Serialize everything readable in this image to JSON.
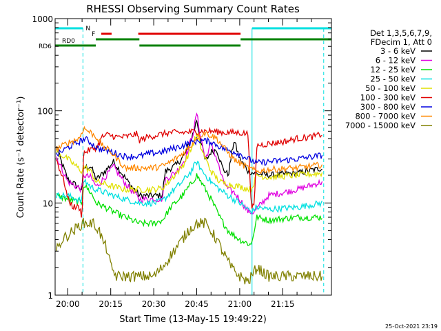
{
  "chart_data": {
    "type": "line",
    "title": "RHESSI Observing Summary Count Rates",
    "xlabel": "Start Time (13-May-15 19:49:22)",
    "ylabel": "Count Rate (s⁻¹ detector⁻¹)",
    "yscale": "log",
    "ylim": [
      1,
      1000
    ],
    "xlim_minutes": [
      -4.4,
      92.0
    ],
    "y_ticks": [
      "1",
      "10",
      "100",
      "1000"
    ],
    "x_ticks": [
      {
        "label": "20:00",
        "minute": 0
      },
      {
        "label": "20:15",
        "minute": 15
      },
      {
        "label": "20:30",
        "minute": 30
      },
      {
        "label": "20:45",
        "minute": 45
      },
      {
        "label": "21:00",
        "minute": 60
      },
      {
        "label": "21:15",
        "minute": 75
      }
    ],
    "timestamp": "25-Oct-2021 23:19",
    "legend": {
      "header": [
        "Det 1,3,5,6,7,9,",
        "FDecim 1, Att 0"
      ],
      "entries": [
        {
          "label": "3 - 6 keV",
          "color": "#000000"
        },
        {
          "label": "6 - 12 keV",
          "color": "#e000e0"
        },
        {
          "label": "12 - 25 keV",
          "color": "#00e000"
        },
        {
          "label": "25 - 50 keV",
          "color": "#00e0e0"
        },
        {
          "label": "50 - 100 keV",
          "color": "#e0e000"
        },
        {
          "label": "100 - 300 keV",
          "color": "#e00000"
        },
        {
          "label": "300 - 800 keV",
          "color": "#0000e0"
        },
        {
          "label": "800 - 7000 keV",
          "color": "#ff8800"
        },
        {
          "label": "7000 - 15000 keV",
          "color": "#808000"
        }
      ]
    },
    "flags": {
      "N_label": "N",
      "F_label": "F",
      "RD6_label": "RD6",
      "night": [
        [
          -4.4,
          5.3
        ],
        [
          64.3,
          92.0
        ]
      ],
      "night_dashed": [
        5.3,
        89.3
      ],
      "flare": [
        [
          11.7,
          15.3
        ],
        [
          24.6,
          60.3
        ]
      ],
      "rd6": [
        [
          -4.4,
          9.8
        ],
        [
          9.8,
          25.0
        ],
        [
          25.0,
          60.3
        ],
        [
          60.3,
          92.0
        ]
      ],
      "rd6_colors": [
        "#008000",
        "#008000",
        "#008000",
        "#008000"
      ]
    },
    "series": [
      {
        "name": "3 - 6 keV",
        "color": "#000000",
        "points": [
          [
            -4,
            40
          ],
          [
            0,
            18
          ],
          [
            5,
            14
          ],
          [
            5.5,
            24
          ],
          [
            8,
            25
          ],
          [
            10,
            18
          ],
          [
            13,
            22
          ],
          [
            16,
            28
          ],
          [
            18,
            23
          ],
          [
            21,
            17
          ],
          [
            25,
            12
          ],
          [
            30,
            12
          ],
          [
            33,
            12
          ],
          [
            34,
            22
          ],
          [
            38,
            26
          ],
          [
            41,
            34
          ],
          [
            44,
            60
          ],
          [
            45,
            80
          ],
          [
            46,
            55
          ],
          [
            48,
            28
          ],
          [
            50,
            36
          ],
          [
            52,
            38
          ],
          [
            54,
            24
          ],
          [
            56,
            20
          ],
          [
            58,
            48
          ],
          [
            60,
            30
          ],
          [
            63,
            22
          ],
          [
            65,
            21
          ],
          [
            70,
            20
          ],
          [
            80,
            21
          ],
          [
            89,
            24
          ]
        ]
      },
      {
        "name": "6 - 12 keV",
        "color": "#e000e0",
        "points": [
          [
            -4,
            32
          ],
          [
            0,
            17
          ],
          [
            5,
            14
          ],
          [
            5.5,
            20
          ],
          [
            8,
            19
          ],
          [
            10,
            15
          ],
          [
            13,
            19
          ],
          [
            16,
            25
          ],
          [
            18,
            20
          ],
          [
            21,
            15
          ],
          [
            25,
            11
          ],
          [
            30,
            11
          ],
          [
            33,
            11
          ],
          [
            34,
            18
          ],
          [
            38,
            22
          ],
          [
            41,
            30
          ],
          [
            44,
            62
          ],
          [
            45,
            95
          ],
          [
            46,
            60
          ],
          [
            48,
            30
          ],
          [
            50,
            44
          ],
          [
            52,
            30
          ],
          [
            54,
            18
          ],
          [
            56,
            14
          ],
          [
            58,
            13
          ],
          [
            60,
            11
          ],
          [
            63,
            8
          ],
          [
            65,
            8
          ],
          [
            70,
            12
          ],
          [
            80,
            14
          ],
          [
            89,
            17
          ]
        ]
      },
      {
        "name": "12 - 25 keV",
        "color": "#00e000",
        "points": [
          [
            -4,
            12
          ],
          [
            0,
            11
          ],
          [
            5,
            10
          ],
          [
            5.5,
            16
          ],
          [
            8,
            13
          ],
          [
            10,
            10
          ],
          [
            13,
            9
          ],
          [
            16,
            8
          ],
          [
            20,
            7
          ],
          [
            25,
            6
          ],
          [
            30,
            6
          ],
          [
            33,
            6.5
          ],
          [
            36,
            9
          ],
          [
            40,
            12
          ],
          [
            43,
            16
          ],
          [
            45,
            20
          ],
          [
            47,
            16
          ],
          [
            50,
            11
          ],
          [
            53,
            7
          ],
          [
            56,
            5
          ],
          [
            60,
            4
          ],
          [
            64,
            3.5
          ],
          [
            66,
            7
          ],
          [
            70,
            6.5
          ],
          [
            80,
            7
          ],
          [
            89,
            7
          ]
        ]
      },
      {
        "name": "25 - 50 keV",
        "color": "#00e0e0",
        "points": [
          [
            -4,
            12
          ],
          [
            0,
            12
          ],
          [
            5,
            10.5
          ],
          [
            5.5,
            18
          ],
          [
            8,
            15
          ],
          [
            10,
            14
          ],
          [
            13,
            13
          ],
          [
            16,
            12
          ],
          [
            20,
            11
          ],
          [
            25,
            10
          ],
          [
            30,
            10
          ],
          [
            33,
            10.5
          ],
          [
            36,
            13
          ],
          [
            40,
            17
          ],
          [
            43,
            22
          ],
          [
            45,
            28
          ],
          [
            47,
            22
          ],
          [
            50,
            17
          ],
          [
            53,
            14
          ],
          [
            56,
            12
          ],
          [
            60,
            10
          ],
          [
            64,
            8
          ],
          [
            66,
            9
          ],
          [
            70,
            8.5
          ],
          [
            80,
            9
          ],
          [
            89,
            10
          ]
        ]
      },
      {
        "name": "50 - 100 keV",
        "color": "#e0e000",
        "points": [
          [
            -4,
            36
          ],
          [
            0,
            30
          ],
          [
            5,
            22
          ],
          [
            5.5,
            25
          ],
          [
            8,
            22
          ],
          [
            10,
            17
          ],
          [
            13,
            16
          ],
          [
            16,
            15
          ],
          [
            20,
            14
          ],
          [
            25,
            14
          ],
          [
            30,
            14
          ],
          [
            33,
            14.5
          ],
          [
            36,
            18
          ],
          [
            40,
            25
          ],
          [
            43,
            38
          ],
          [
            45,
            55
          ],
          [
            47,
            36
          ],
          [
            50,
            22
          ],
          [
            53,
            17
          ],
          [
            56,
            16
          ],
          [
            60,
            15
          ],
          [
            64,
            14
          ],
          [
            66,
            20
          ],
          [
            70,
            19
          ],
          [
            80,
            20
          ],
          [
            89,
            21
          ]
        ]
      },
      {
        "name": "100 - 300 keV",
        "color": "#e00000",
        "points": [
          [
            -4,
            30
          ],
          [
            -1,
            16
          ],
          [
            0,
            11
          ],
          [
            2,
            9
          ],
          [
            4,
            9
          ],
          [
            5,
            7
          ],
          [
            5.5,
            35
          ],
          [
            8,
            38
          ],
          [
            10,
            40
          ],
          [
            11,
            45
          ],
          [
            12,
            52
          ],
          [
            14,
            55
          ],
          [
            17,
            52
          ],
          [
            20,
            52
          ],
          [
            24,
            56
          ],
          [
            25,
            48
          ],
          [
            28,
            52
          ],
          [
            33,
            56
          ],
          [
            36,
            58
          ],
          [
            40,
            58
          ],
          [
            45,
            60
          ],
          [
            50,
            60
          ],
          [
            55,
            58
          ],
          [
            58,
            58
          ],
          [
            60,
            58
          ],
          [
            63,
            56
          ],
          [
            64,
            9
          ],
          [
            65,
            9
          ],
          [
            66,
            42
          ],
          [
            70,
            44
          ],
          [
            75,
            46
          ],
          [
            80,
            50
          ],
          [
            85,
            52
          ],
          [
            89,
            56
          ]
        ]
      },
      {
        "name": "300 - 800 keV",
        "color": "#0000e0",
        "points": [
          [
            -4,
            33
          ],
          [
            0,
            40
          ],
          [
            4,
            46
          ],
          [
            6,
            50
          ],
          [
            8,
            45
          ],
          [
            10,
            40
          ],
          [
            12,
            38
          ],
          [
            15,
            36
          ],
          [
            20,
            32
          ],
          [
            25,
            32
          ],
          [
            28,
            34
          ],
          [
            33,
            36
          ],
          [
            38,
            40
          ],
          [
            43,
            45
          ],
          [
            46,
            48
          ],
          [
            50,
            46
          ],
          [
            55,
            38
          ],
          [
            58,
            36
          ],
          [
            60,
            34
          ],
          [
            63,
            30
          ],
          [
            66,
            27
          ],
          [
            70,
            28
          ],
          [
            80,
            30
          ],
          [
            89,
            33
          ]
        ]
      },
      {
        "name": "800 - 7000 keV",
        "color": "#ff8800",
        "points": [
          [
            -4,
            38
          ],
          [
            0,
            45
          ],
          [
            4,
            50
          ],
          [
            5.5,
            65
          ],
          [
            8,
            58
          ],
          [
            10,
            52
          ],
          [
            12,
            42
          ],
          [
            15,
            36
          ],
          [
            20,
            24
          ],
          [
            25,
            24
          ],
          [
            30,
            24
          ],
          [
            33,
            25
          ],
          [
            36,
            28
          ],
          [
            40,
            34
          ],
          [
            43,
            42
          ],
          [
            45,
            52
          ],
          [
            48,
            58
          ],
          [
            52,
            50
          ],
          [
            55,
            38
          ],
          [
            58,
            30
          ],
          [
            60,
            27
          ],
          [
            63,
            24
          ],
          [
            66,
            22
          ],
          [
            70,
            23
          ],
          [
            80,
            24
          ],
          [
            89,
            26
          ]
        ]
      },
      {
        "name": "7000 - 15000 keV",
        "color": "#808000",
        "points": [
          [
            -4,
            3
          ],
          [
            -2,
            4
          ],
          [
            2,
            5
          ],
          [
            5,
            6
          ],
          [
            9,
            6
          ],
          [
            11,
            5
          ],
          [
            12,
            4
          ],
          [
            14,
            3
          ],
          [
            15,
            2
          ],
          [
            17,
            1.6
          ],
          [
            22,
            1.6
          ],
          [
            26,
            1.6
          ],
          [
            30,
            1.6
          ],
          [
            33,
            2
          ],
          [
            37,
            3
          ],
          [
            40,
            4
          ],
          [
            42,
            5
          ],
          [
            45,
            6
          ],
          [
            48,
            6
          ],
          [
            50,
            5
          ],
          [
            52,
            4
          ],
          [
            54,
            3
          ],
          [
            57,
            2
          ],
          [
            60,
            1.6
          ],
          [
            63,
            1.4
          ],
          [
            66,
            2
          ],
          [
            70,
            1.6
          ],
          [
            80,
            1.6
          ],
          [
            89,
            1.6
          ]
        ]
      }
    ]
  }
}
